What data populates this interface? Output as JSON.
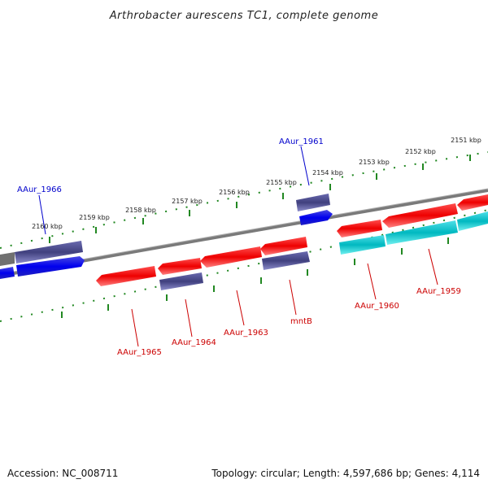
{
  "title": "Arthrobacter aurescens TC1, complete genome",
  "footer": {
    "accession": "Accession: NC_008711",
    "summary": "Topology: circular; Length: 4,597,686 bp; Genes: 4,114"
  },
  "colors": {
    "forward_gene": "#0000ee",
    "forward_dark": "#4a4a90",
    "reverse_gene": "#ee0000",
    "reverse_dark": "#e03030",
    "cyan_gene": "#00c8d0",
    "backbone": "#808080",
    "tick": "#228822",
    "label_blue": "#0000cc",
    "label_red": "#cc0000"
  },
  "kbp_ticks": [
    "2160 kbp",
    "2159 kbp",
    "2158 kbp",
    "2157 kbp",
    "2156 kbp",
    "2155 kbp",
    "2154 kbp",
    "2153 kbp",
    "2152 kbp",
    "2151 kbp"
  ],
  "gene_labels": [
    {
      "text": "AAur_1966",
      "strand": "forward"
    },
    {
      "text": "AAur_1961",
      "strand": "forward"
    },
    {
      "text": "AAur_1965",
      "strand": "reverse"
    },
    {
      "text": "AAur_1964",
      "strand": "reverse"
    },
    {
      "text": "AAur_1963",
      "strand": "reverse"
    },
    {
      "text": "mntB",
      "strand": "reverse"
    },
    {
      "text": "AAur_1960",
      "strand": "reverse"
    },
    {
      "text": "AAur_1959",
      "strand": "reverse"
    }
  ]
}
